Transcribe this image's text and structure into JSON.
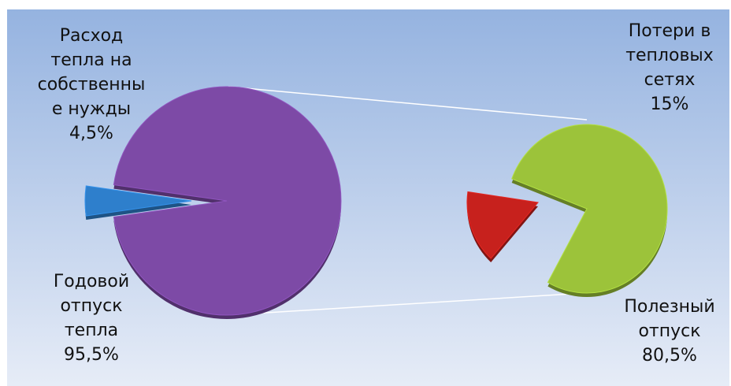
{
  "chart_data": [
    {
      "type": "pie",
      "slices": [
        {
          "label_lines": [
            "Расход",
            "тепла на",
            "собственны",
            "е нужды",
            "4,5%"
          ],
          "value": 4.5,
          "color": "#2e7fcc"
        },
        {
          "label_lines": [
            "Годовой",
            "отпуск",
            "тепла",
            "95,5%"
          ],
          "value": 95.5,
          "color": "#7d4aa6"
        }
      ]
    },
    {
      "type": "pie",
      "slices": [
        {
          "label_lines": [
            "Потери в",
            "тепловых",
            "сетях",
            "15%"
          ],
          "value": 15,
          "color": "#c7211d"
        },
        {
          "label_lines": [
            "Полезный",
            "отпуск",
            "80,5%"
          ],
          "value": 80.5,
          "color": "#9cc33a"
        }
      ]
    }
  ],
  "colors": {
    "background_top": "#95b3e0",
    "background_bottom": "#e6ecf7",
    "connector": "#ffffff"
  }
}
